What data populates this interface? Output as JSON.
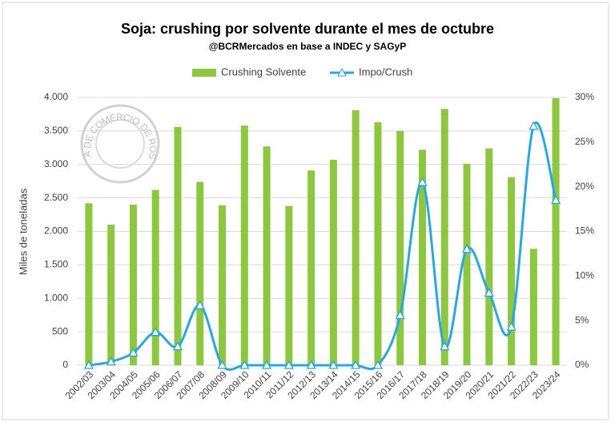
{
  "chart_data": {
    "type": "bar_line",
    "title": "Soja: crushing por solvente durante el mes de octubre",
    "subtitle": "@BCRMercados en base a INDEC y SAGyP",
    "ylabel": "Miles de toneladas",
    "watermark": "BOLSA DE COMERCIO DE ROSARIO",
    "categories": [
      "2002/03",
      "2003/04",
      "2004/05",
      "2005/06",
      "2006/07",
      "2007/08",
      "2008/09",
      "2009/10",
      "2010/11",
      "2011/12",
      "2012/13",
      "2013/14",
      "2014/15",
      "2015/16",
      "2016/17",
      "2017/18",
      "2018/19",
      "2019/20",
      "2020/21",
      "2021/22",
      "2022/23",
      "2023/24"
    ],
    "series": [
      {
        "name": "Crushing Solvente",
        "color": "#8dc63f",
        "type": "bar",
        "values": [
          2420,
          2100,
          2400,
          2620,
          3560,
          2740,
          2390,
          3580,
          3270,
          2380,
          2910,
          3070,
          3810,
          3630,
          3500,
          3220,
          3830,
          3010,
          3240,
          2810,
          1740,
          3990
        ]
      },
      {
        "name": "Impo/Crush",
        "color": "#2aa7df",
        "type": "line",
        "axis": "y2",
        "values": [
          0,
          0.4,
          1.4,
          3.7,
          2.1,
          6.7,
          0,
          0,
          0,
          0,
          0,
          0,
          0,
          0,
          5.6,
          20.5,
          2.1,
          13.0,
          8.1,
          4.3,
          26.8,
          18.5
        ]
      }
    ],
    "ylim": [
      0,
      4000
    ],
    "yticks": [
      0,
      500,
      {
        "value": 1000,
        "label": "1.000"
      },
      {
        "value": 1500,
        "label": "1.500"
      },
      {
        "value": 2000,
        "label": "2.000"
      },
      {
        "value": 2500,
        "label": "2.500"
      },
      {
        "value": 3000,
        "label": "3.000"
      },
      {
        "value": 3500,
        "label": "3.500"
      },
      {
        "value": 4000,
        "label": "4.000"
      }
    ],
    "y2lim": [
      0,
      30
    ],
    "y2ticks": [
      {
        "value": 0,
        "label": "0%"
      },
      {
        "value": 5,
        "label": "5%"
      },
      {
        "value": 10,
        "label": "10%"
      },
      {
        "value": 15,
        "label": "15%"
      },
      {
        "value": 20,
        "label": "20%"
      },
      {
        "value": 25,
        "label": "25%"
      },
      {
        "value": 30,
        "label": "30%"
      }
    ],
    "grid": true,
    "legend": "top"
  }
}
